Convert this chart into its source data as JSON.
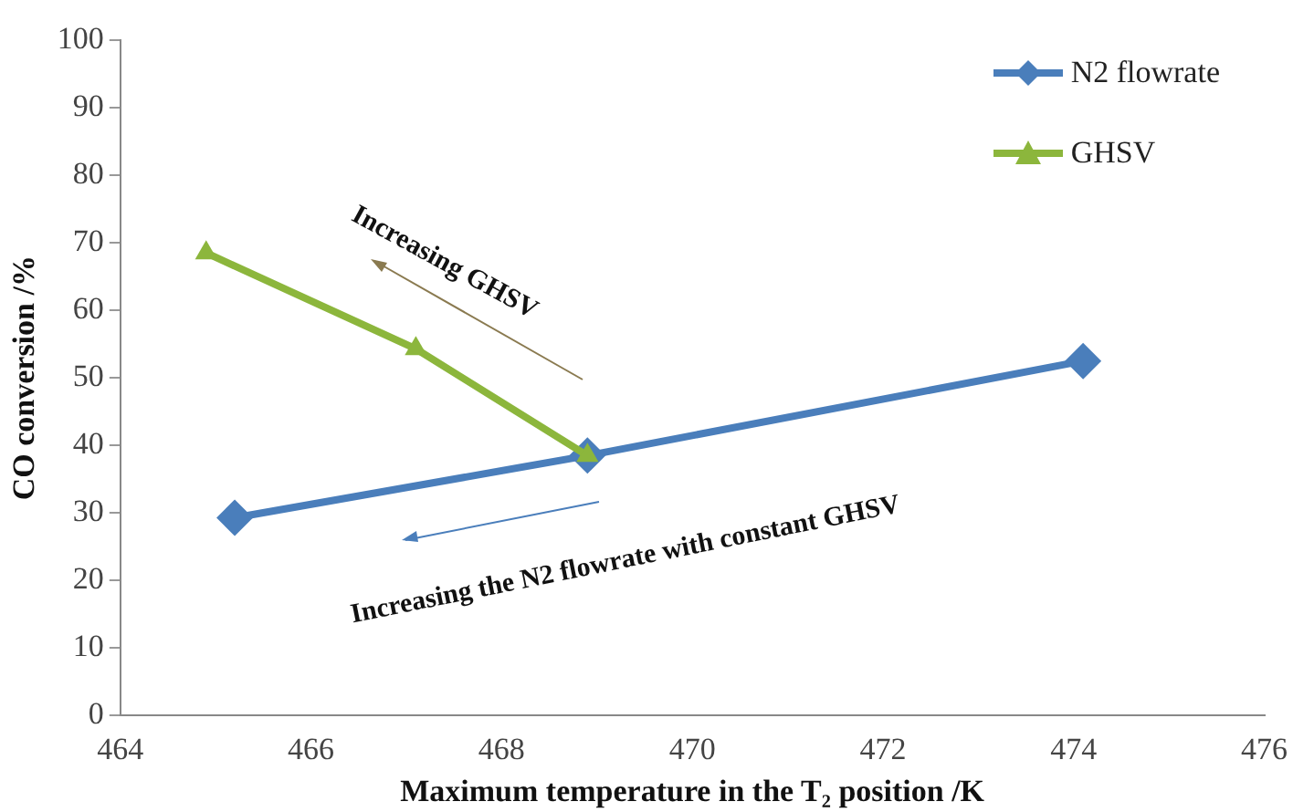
{
  "chart_data": {
    "type": "line",
    "xlabel": "Maximum temperature in the T₂ position /K",
    "ylabel": "CO conversion /%",
    "xlim": [
      464,
      476
    ],
    "xticks": [
      464,
      466,
      468,
      470,
      472,
      474,
      476
    ],
    "ylim": [
      0,
      100
    ],
    "yticks": [
      0,
      10,
      20,
      30,
      40,
      50,
      60,
      70,
      80,
      90,
      100
    ],
    "grid": false,
    "legend": "top right",
    "line_style": "solid",
    "series": [
      {
        "name": "N2 flowrate",
        "color": "#4a7ebb",
        "marker": "diamond",
        "x": [
          465.2,
          468.9,
          474.1
        ],
        "values": [
          29.3,
          38.5,
          52.5
        ]
      },
      {
        "name": "GHSV",
        "color": "#8cb63c",
        "marker": "triangle",
        "x": [
          464.9,
          467.1,
          468.9
        ],
        "values": [
          68.5,
          54.3,
          38.5
        ]
      }
    ],
    "annotations": [
      "Increasing GHSV",
      "Increasing the N2 flowrate with constant GHSV"
    ]
  }
}
